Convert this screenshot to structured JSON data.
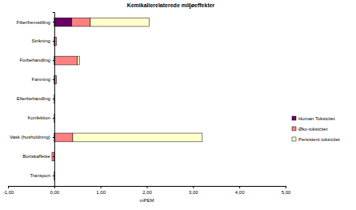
{
  "chart_data": {
    "type": "bar",
    "orientation": "horizontal",
    "stacked": true,
    "grid": false,
    "legend": "right",
    "title": "Kemikalierelaterede miljøeffekter",
    "x_label": "mPEM",
    "categories": [
      "Fiberfremstilling",
      "Strikning",
      "Forbehandling",
      "Farvning",
      "Efterbehandling",
      "Konfektion",
      "Vask (husholdning)",
      "Bortskaffelse",
      "Transport"
    ],
    "series": [
      {
        "name": "Human Toksicitet",
        "color": "#660066",
        "values": [
          0.38,
          0.01,
          0.01,
          0.01,
          0.0,
          0.0,
          0.01,
          0.0,
          0.0
        ]
      },
      {
        "name": "Øko-toksicitet",
        "color": "#ff8080",
        "values": [
          0.4,
          0.04,
          0.49,
          0.04,
          0.01,
          0.01,
          0.39,
          -0.05,
          0.01
        ]
      },
      {
        "name": "Persistent toksicitet",
        "color": "#ffffcc",
        "values": [
          1.27,
          0.0,
          0.05,
          0.0,
          0.0,
          0.0,
          2.8,
          0.0,
          0.0
        ]
      }
    ],
    "xlim": [
      -1,
      5
    ],
    "xticks": [
      {
        "value": -1,
        "label": "-1,00"
      },
      {
        "value": 0,
        "label": "0,00"
      },
      {
        "value": 1,
        "label": "1,00"
      },
      {
        "value": 2,
        "label": "2,00"
      },
      {
        "value": 3,
        "label": "3,00"
      },
      {
        "value": 4,
        "label": "4,00"
      },
      {
        "value": 5,
        "label": "5,00"
      }
    ]
  }
}
